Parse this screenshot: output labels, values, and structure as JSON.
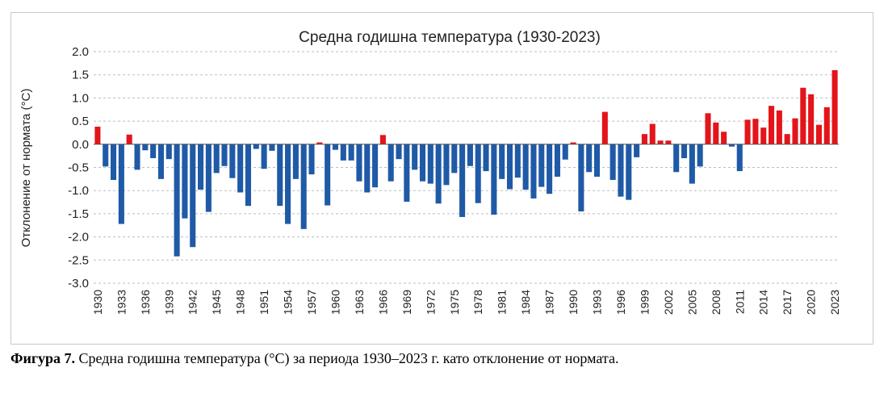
{
  "chart_data": {
    "type": "bar",
    "title": "Средна годишна температура (1930-2023)",
    "ylabel": "Отклонение от нормата (°C)",
    "xlabel": "",
    "ylim": [
      -3.0,
      2.0
    ],
    "yticks": [
      "2.0",
      "1.5",
      "1.0",
      "0.5",
      "0.0",
      "-0.5",
      "-1.0",
      "-1.5",
      "-2.0",
      "-2.5",
      "-3.0"
    ],
    "xtick_labels": [
      "1930",
      "1933",
      "1936",
      "1939",
      "1942",
      "1945",
      "1948",
      "1951",
      "1954",
      "1957",
      "1960",
      "1963",
      "1966",
      "1969",
      "1972",
      "1975",
      "1978",
      "1981",
      "1984",
      "1987",
      "1990",
      "1993",
      "1996",
      "1999",
      "2002",
      "2005",
      "2008",
      "2011",
      "2014",
      "2017",
      "2020",
      "2023"
    ],
    "grid": true,
    "colors": {
      "positive": "#e3151a",
      "negative": "#1f5aa6"
    },
    "years": [
      1930,
      1931,
      1932,
      1933,
      1934,
      1935,
      1936,
      1937,
      1938,
      1939,
      1940,
      1941,
      1942,
      1943,
      1944,
      1945,
      1946,
      1947,
      1948,
      1949,
      1950,
      1951,
      1952,
      1953,
      1954,
      1955,
      1956,
      1957,
      1958,
      1959,
      1960,
      1961,
      1962,
      1963,
      1964,
      1965,
      1966,
      1967,
      1968,
      1969,
      1970,
      1971,
      1972,
      1973,
      1974,
      1975,
      1976,
      1977,
      1978,
      1979,
      1980,
      1981,
      1982,
      1983,
      1984,
      1985,
      1986,
      1987,
      1988,
      1989,
      1990,
      1991,
      1992,
      1993,
      1994,
      1995,
      1996,
      1997,
      1998,
      1999,
      2000,
      2001,
      2002,
      2003,
      2004,
      2005,
      2006,
      2007,
      2008,
      2009,
      2010,
      2011,
      2012,
      2013,
      2014,
      2015,
      2016,
      2017,
      2018,
      2019,
      2020,
      2021,
      2022,
      2023
    ],
    "values": [
      0.38,
      -0.48,
      -0.77,
      -1.72,
      0.21,
      -0.55,
      -0.13,
      -0.3,
      -0.75,
      -0.32,
      -2.42,
      -1.6,
      -2.22,
      -0.98,
      -1.46,
      -0.62,
      -0.47,
      -0.73,
      -1.04,
      -1.33,
      -0.1,
      -0.53,
      -0.14,
      -1.33,
      -1.72,
      -0.75,
      -1.83,
      -0.65,
      0.04,
      -1.32,
      -0.12,
      -0.35,
      -0.35,
      -0.8,
      -1.04,
      -0.93,
      0.2,
      -0.8,
      -0.32,
      -1.24,
      -0.55,
      -0.8,
      -0.85,
      -1.28,
      -0.88,
      -0.62,
      -1.57,
      -0.47,
      -1.27,
      -0.58,
      -1.52,
      -0.75,
      -0.97,
      -0.72,
      -0.98,
      -1.17,
      -0.92,
      -1.07,
      -0.7,
      -0.33,
      0.04,
      -1.45,
      -0.6,
      -0.7,
      0.7,
      -0.77,
      -1.13,
      -1.2,
      -0.28,
      0.22,
      0.44,
      0.08,
      0.08,
      -0.6,
      -0.3,
      -0.85,
      -0.48,
      0.67,
      0.47,
      0.27,
      -0.05,
      -0.58,
      0.53,
      0.55,
      0.36,
      0.83,
      0.73,
      0.22,
      0.56,
      1.22,
      1.08,
      0.42,
      0.8,
      1.6
    ]
  },
  "caption": {
    "label": "Фигура 7.",
    "text": " Средна годишна температура (°C) за периода 1930–2023 г. като отклонение от нормата."
  }
}
